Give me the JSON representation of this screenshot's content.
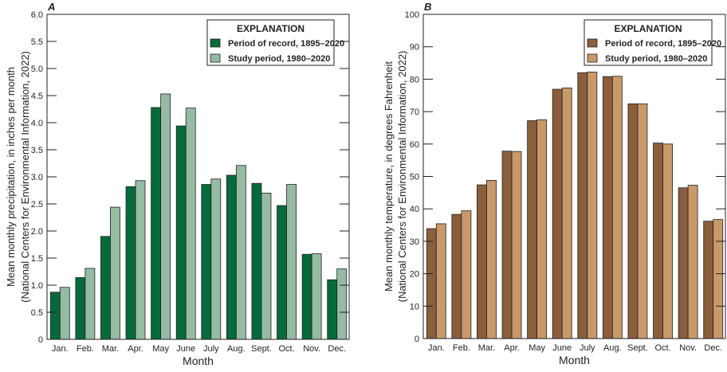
{
  "chart_data": [
    {
      "type": "bar",
      "panel_label": "A",
      "categories": [
        "Jan.",
        "Feb.",
        "Mar.",
        "Apr.",
        "May",
        "June",
        "July",
        "Aug.",
        "Sept.",
        "Oct.",
        "Nov.",
        "Dec."
      ],
      "series": [
        {
          "name": "Period of record, 1895–2020",
          "color": "#066b3a",
          "values": [
            0.87,
            1.14,
            1.9,
            2.82,
            4.28,
            3.94,
            2.86,
            3.03,
            2.88,
            2.47,
            1.57,
            1.1
          ]
        },
        {
          "name": "Study period, 1980–2020",
          "color": "#96bba4",
          "values": [
            0.96,
            1.31,
            2.44,
            2.93,
            4.53,
            4.27,
            2.96,
            3.21,
            2.7,
            2.86,
            1.58,
            1.3
          ]
        }
      ],
      "xlabel": "Month",
      "ylabel": "Mean monthly precipitation, in inches per month",
      "ylabel2": "(National Centers for Environmental Information, 2022)",
      "ylim": [
        0,
        6.0
      ],
      "yticks": [
        "0",
        "0.5",
        "1.0",
        "1.5",
        "2.0",
        "2.5",
        "3.0",
        "3.5",
        "4.0",
        "4.5",
        "5.0",
        "5.5",
        "6.0"
      ],
      "legend_title": "EXPLANATION",
      "legend_position": "top-right",
      "grid": false
    },
    {
      "type": "bar",
      "panel_label": "B",
      "categories": [
        "Jan.",
        "Feb.",
        "Mar.",
        "Apr.",
        "May",
        "June",
        "July",
        "Aug.",
        "Sept.",
        "Oct.",
        "Nov.",
        "Dec."
      ],
      "series": [
        {
          "name": "Period of record, 1895–2020",
          "color": "#8b5e3c",
          "values": [
            33.9,
            38.3,
            47.4,
            57.8,
            67.2,
            76.9,
            82.0,
            80.8,
            72.4,
            60.3,
            46.5,
            36.2
          ]
        },
        {
          "name": "Study period, 1980–2020",
          "color": "#c89a6a",
          "values": [
            35.4,
            39.4,
            48.8,
            57.7,
            67.5,
            77.3,
            82.2,
            80.9,
            72.4,
            60.0,
            47.3,
            36.7
          ]
        }
      ],
      "xlabel": "Month",
      "ylabel": "Mean monthly temperature, in degrees Fahrenheit",
      "ylabel2": "(National Centers for Environmental Information, 2022)",
      "ylim": [
        0,
        100
      ],
      "yticks": [
        "0",
        "10",
        "20",
        "30",
        "40",
        "50",
        "60",
        "70",
        "80",
        "90",
        "100"
      ],
      "legend_title": "EXPLANATION",
      "legend_position": "top-right",
      "grid": false
    }
  ]
}
